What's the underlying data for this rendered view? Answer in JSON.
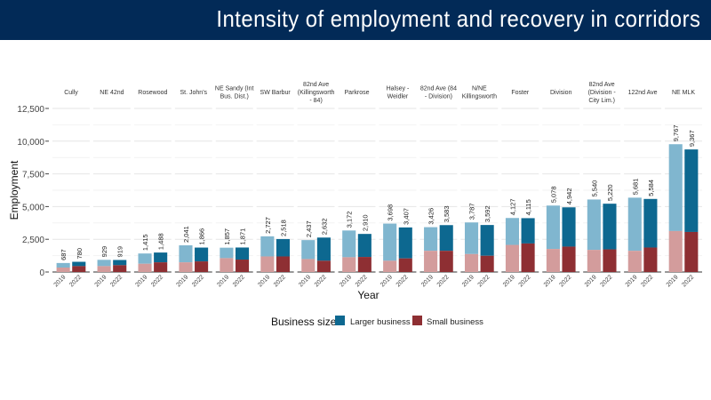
{
  "slide": {
    "title": "Intensity of employment and recovery in corridors"
  },
  "chart_data": {
    "type": "bar",
    "stacked": true,
    "faceted": true,
    "ylabel": "Employment",
    "xlabel": "Year",
    "ylim": [
      0,
      12500
    ],
    "yticks": [
      0,
      2500,
      5000,
      7500,
      10000,
      12500
    ],
    "ytick_labels": [
      "0",
      "2,500",
      "5,000",
      "7,500",
      "10,000",
      "12,500"
    ],
    "grid": true,
    "legend": {
      "title": "Business size",
      "placement": "bottom",
      "entries": [
        "Larger business",
        "Small business"
      ]
    },
    "colors": {
      "larger_2019": "#80b6cf",
      "larger_2022": "#0d6890",
      "small_2019": "#d39c9c",
      "small_2022": "#8e2f33"
    },
    "years": [
      "2019",
      "2022"
    ],
    "facets": [
      {
        "name": "Cully",
        "totals": [
          687,
          780
        ],
        "total_labels": [
          "687",
          "780"
        ],
        "small": [
          340,
          450
        ]
      },
      {
        "name": "NE 42nd",
        "totals": [
          929,
          919
        ],
        "total_labels": [
          "929",
          "919"
        ],
        "small": [
          450,
          520
        ]
      },
      {
        "name": "Rosewood",
        "totals": [
          1415,
          1488
        ],
        "total_labels": [
          "1,415",
          "1,488"
        ],
        "small": [
          630,
          740
        ]
      },
      {
        "name": "St. John's",
        "totals": [
          2041,
          1866
        ],
        "total_labels": [
          "2,041",
          "1,866"
        ],
        "small": [
          740,
          810
        ]
      },
      {
        "name": "NE Sandy (Int Bus. Dist.)",
        "totals": [
          1857,
          1871
        ],
        "total_labels": [
          "1,857",
          "1,871"
        ],
        "small": [
          1060,
          950
        ]
      },
      {
        "name": "SW Barbur",
        "totals": [
          2727,
          2518
        ],
        "total_labels": [
          "2,727",
          "2,518"
        ],
        "small": [
          1190,
          1190
        ]
      },
      {
        "name": "82nd Ave (Killingsworth - 84)",
        "totals": [
          2437,
          2632
        ],
        "total_labels": [
          "2,437",
          "2,632"
        ],
        "small": [
          990,
          860
        ]
      },
      {
        "name": "Parkrose",
        "totals": [
          3172,
          2910
        ],
        "total_labels": [
          "3,172",
          "2,910"
        ],
        "small": [
          1130,
          1150
        ]
      },
      {
        "name": "Halsey - Weidler",
        "totals": [
          3698,
          3407
        ],
        "total_labels": [
          "3,698",
          "3,407"
        ],
        "small": [
          860,
          1040
        ]
      },
      {
        "name": "82nd Ave (84 - Division)",
        "totals": [
          3426,
          3583
        ],
        "total_labels": [
          "3,426",
          "3,583"
        ],
        "small": [
          1620,
          1620
        ]
      },
      {
        "name": "N/NE Killingsworth",
        "totals": [
          3787,
          3592
        ],
        "total_labels": [
          "3,787",
          "3,592"
        ],
        "small": [
          1370,
          1240
        ]
      },
      {
        "name": "Foster",
        "totals": [
          4127,
          4115
        ],
        "total_labels": [
          "4,127",
          "4,115"
        ],
        "small": [
          2070,
          2180
        ]
      },
      {
        "name": "Division",
        "totals": [
          5078,
          4942
        ],
        "total_labels": [
          "5,078",
          "4,942"
        ],
        "small": [
          1760,
          1940
        ]
      },
      {
        "name": "82nd Ave (Division - City Lim.)",
        "totals": [
          5540,
          5220
        ],
        "total_labels": [
          "5,540",
          "5,220"
        ],
        "small": [
          1690,
          1730
        ]
      },
      {
        "name": "122nd Ave",
        "totals": [
          5681,
          5584
        ],
        "total_labels": [
          "5,681",
          "5,584"
        ],
        "small": [
          1620,
          1870
        ]
      },
      {
        "name": "NE MLK",
        "totals": [
          9767,
          9367
        ],
        "total_labels": [
          "9,767",
          "9,367"
        ],
        "small": [
          3130,
          3060
        ]
      }
    ]
  }
}
